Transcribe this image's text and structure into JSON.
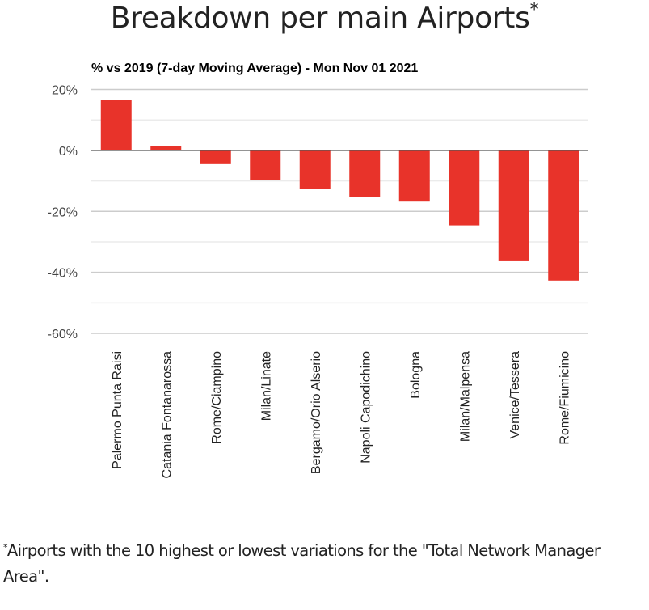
{
  "header": {
    "title": "Breakdown per main Airports",
    "title_marker": "*"
  },
  "footnote": {
    "marker": "*",
    "text": "Airports with the 10 highest or lowest variations for the \"Total Network Manager Area\"."
  },
  "colors": {
    "bar": "#e8332a",
    "zero_line": "#555555",
    "major_grid": "#cccccc",
    "minor_grid": "#ebebeb"
  },
  "chart_data": {
    "type": "bar",
    "title": "Breakdown per main Airports",
    "subtitle": "% vs 2019 (7-day Moving Average) - Mon Nov 01 2021",
    "xlabel": "",
    "ylabel": "",
    "ylim": [
      -60,
      20
    ],
    "yticks": [
      20,
      0,
      -20,
      -40,
      -60
    ],
    "ytick_labels": [
      "20%",
      "0%",
      "-20%",
      "-40%",
      "-60%"
    ],
    "minor_gridlines": [
      10,
      -10,
      -30,
      -50
    ],
    "grid": true,
    "legend": "none",
    "categories": [
      "Palermo Punta Raisi",
      "Catania Fontanarossa",
      "Rome/Ciampino",
      "Milan/Linate",
      "Bergamo/Orio Alserio",
      "Napoli Capodichino",
      "Bologna",
      "Milan/Malpensa",
      "Venice/Tessera",
      "Rome/Fiumicino"
    ],
    "series": [
      {
        "name": "% vs 2019",
        "values": [
          16.6,
          1.3,
          -4.5,
          -9.7,
          -12.6,
          -15.4,
          -16.8,
          -24.6,
          -36.1,
          -42.7
        ]
      }
    ]
  }
}
